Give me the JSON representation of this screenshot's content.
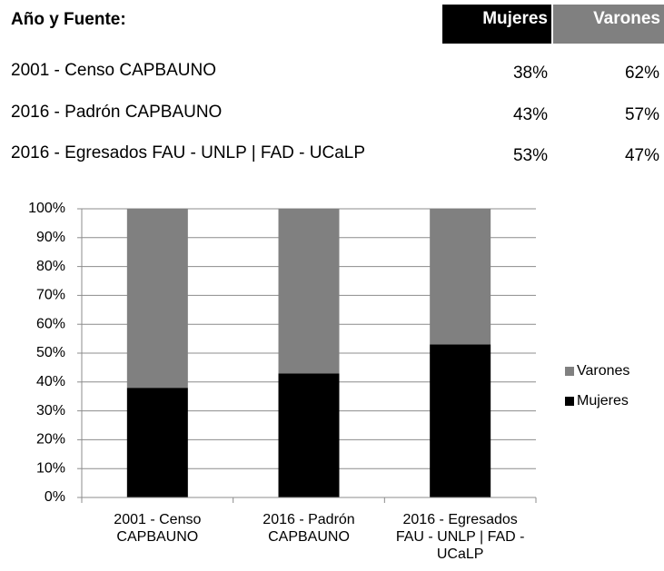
{
  "table": {
    "header": [
      "Año y Fuente:",
      "Mujeres",
      "Varones"
    ],
    "rows": [
      [
        "2001 - Censo CAPBAUNO",
        "38%",
        "62%"
      ],
      [
        "2016 - Padrón CAPBAUNO",
        "43%",
        "57%"
      ],
      [
        "2016 - Egresados FAU - UNLP | FAD - UCaLP",
        "53%",
        "47%"
      ]
    ]
  },
  "chart_data": {
    "type": "bar",
    "stacked": true,
    "categories": [
      "2001 - Censo CAPBAUNO",
      "2016 - Padrón CAPBAUNO",
      "2016 - Egresados FAU - UNLP | FAD - UCaLP"
    ],
    "series": [
      {
        "name": "Mujeres",
        "color": "#000000",
        "values": [
          38,
          43,
          53
        ]
      },
      {
        "name": "Varones",
        "color": "#808080",
        "values": [
          62,
          57,
          47
        ]
      }
    ],
    "ylim": [
      0,
      100
    ],
    "yticks": [
      {
        "value": 0,
        "label": "0%"
      },
      {
        "value": 10,
        "label": "10%"
      },
      {
        "value": 20,
        "label": "20%"
      },
      {
        "value": 30,
        "label": "30%"
      },
      {
        "value": 40,
        "label": "40%"
      },
      {
        "value": 50,
        "label": "50%"
      },
      {
        "value": 60,
        "label": "60%"
      },
      {
        "value": 70,
        "label": "70%"
      },
      {
        "value": 80,
        "label": "80%"
      },
      {
        "value": 90,
        "label": "90%"
      },
      {
        "value": 100,
        "label": "100%"
      }
    ],
    "grid": true,
    "legend": "right"
  }
}
